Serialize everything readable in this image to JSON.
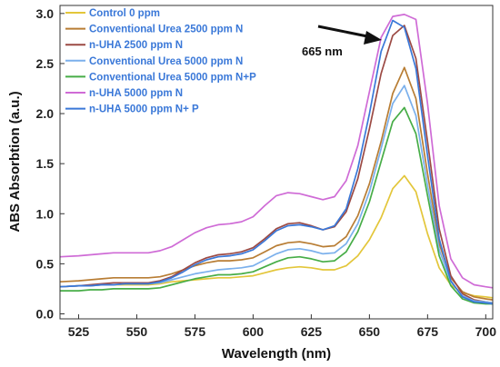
{
  "chart_data": {
    "type": "line",
    "xlabel": "Wavelength (nm)",
    "ylabel": "ABS Absorbtion (a.u.)",
    "xlim": [
      517,
      703
    ],
    "ylim": [
      -0.05,
      3.08
    ],
    "xticks": [
      525,
      550,
      575,
      600,
      625,
      650,
      675,
      700
    ],
    "yticks": [
      0.0,
      0.5,
      1.0,
      1.5,
      2.0,
      2.5,
      3.0
    ],
    "ytick_labels": [
      "0.0",
      "0.5",
      "1.0",
      "1.5",
      "2.0",
      "2.5",
      "3.0"
    ],
    "grid": false,
    "legend_position": "top-left",
    "annotation": {
      "text": "665 nm",
      "arrow_points_to": [
        660,
        2.87
      ]
    },
    "x": [
      517,
      525,
      530,
      535,
      540,
      545,
      550,
      555,
      560,
      565,
      570,
      575,
      580,
      585,
      590,
      595,
      600,
      605,
      610,
      615,
      620,
      625,
      630,
      635,
      640,
      645,
      650,
      655,
      660,
      665,
      670,
      675,
      680,
      685,
      690,
      695,
      700,
      703
    ],
    "series": [
      {
        "name": "Control 0 ppm",
        "color": "#e3c63a",
        "values": [
          0.27,
          0.28,
          0.28,
          0.29,
          0.29,
          0.29,
          0.29,
          0.29,
          0.3,
          0.32,
          0.33,
          0.34,
          0.35,
          0.36,
          0.36,
          0.37,
          0.38,
          0.41,
          0.44,
          0.46,
          0.47,
          0.46,
          0.44,
          0.44,
          0.48,
          0.58,
          0.74,
          0.96,
          1.25,
          1.38,
          1.22,
          0.8,
          0.46,
          0.29,
          0.21,
          0.18,
          0.17,
          0.16
        ]
      },
      {
        "name": "Conventional Urea 2500 ppm N",
        "color": "#b87d34",
        "values": [
          0.32,
          0.33,
          0.34,
          0.35,
          0.36,
          0.36,
          0.36,
          0.36,
          0.37,
          0.4,
          0.44,
          0.48,
          0.51,
          0.53,
          0.53,
          0.54,
          0.56,
          0.62,
          0.68,
          0.71,
          0.72,
          0.7,
          0.67,
          0.68,
          0.77,
          0.98,
          1.3,
          1.72,
          2.2,
          2.46,
          2.15,
          1.4,
          0.7,
          0.36,
          0.22,
          0.17,
          0.15,
          0.14
        ]
      },
      {
        "name": "n-UHA 2500 ppm N",
        "color": "#9c4a44",
        "values": [
          0.27,
          0.28,
          0.29,
          0.3,
          0.31,
          0.31,
          0.31,
          0.31,
          0.33,
          0.37,
          0.44,
          0.51,
          0.56,
          0.59,
          0.6,
          0.62,
          0.66,
          0.75,
          0.85,
          0.9,
          0.91,
          0.88,
          0.84,
          0.87,
          1.02,
          1.35,
          1.85,
          2.4,
          2.78,
          2.88,
          2.55,
          1.72,
          0.85,
          0.38,
          0.2,
          0.14,
          0.12,
          0.11
        ]
      },
      {
        "name": "Conventional Urea 5000 ppm N",
        "color": "#7bb0ec",
        "values": [
          0.27,
          0.28,
          0.28,
          0.29,
          0.29,
          0.3,
          0.3,
          0.3,
          0.31,
          0.34,
          0.37,
          0.4,
          0.42,
          0.44,
          0.45,
          0.46,
          0.48,
          0.54,
          0.6,
          0.64,
          0.65,
          0.63,
          0.6,
          0.61,
          0.7,
          0.9,
          1.22,
          1.65,
          2.1,
          2.28,
          1.98,
          1.28,
          0.64,
          0.32,
          0.18,
          0.13,
          0.12,
          0.11
        ]
      },
      {
        "name": "Conventional Urea 5000 ppm N+P",
        "color": "#47ad47",
        "values": [
          0.23,
          0.23,
          0.24,
          0.24,
          0.25,
          0.25,
          0.25,
          0.25,
          0.26,
          0.29,
          0.32,
          0.35,
          0.37,
          0.39,
          0.39,
          0.4,
          0.42,
          0.47,
          0.52,
          0.56,
          0.57,
          0.55,
          0.52,
          0.53,
          0.62,
          0.82,
          1.12,
          1.52,
          1.92,
          2.06,
          1.8,
          1.18,
          0.58,
          0.28,
          0.15,
          0.11,
          0.1,
          0.1
        ]
      },
      {
        "name": "n-UHA 5000 ppm N",
        "color": "#cf6bd6",
        "values": [
          0.57,
          0.58,
          0.59,
          0.6,
          0.61,
          0.61,
          0.61,
          0.61,
          0.63,
          0.67,
          0.74,
          0.81,
          0.86,
          0.89,
          0.9,
          0.92,
          0.97,
          1.08,
          1.18,
          1.21,
          1.2,
          1.17,
          1.14,
          1.17,
          1.33,
          1.68,
          2.22,
          2.76,
          2.97,
          2.99,
          2.94,
          2.1,
          1.08,
          0.55,
          0.36,
          0.29,
          0.27,
          0.26
        ]
      },
      {
        "name": "n-UHA 5000 ppm N+ P",
        "color": "#3a78d8",
        "values": [
          0.27,
          0.28,
          0.28,
          0.29,
          0.29,
          0.3,
          0.3,
          0.3,
          0.32,
          0.36,
          0.42,
          0.49,
          0.54,
          0.57,
          0.58,
          0.6,
          0.64,
          0.73,
          0.83,
          0.88,
          0.89,
          0.87,
          0.84,
          0.88,
          1.05,
          1.45,
          2.0,
          2.62,
          2.93,
          2.86,
          2.45,
          1.58,
          0.75,
          0.33,
          0.17,
          0.12,
          0.11,
          0.1
        ]
      }
    ]
  }
}
